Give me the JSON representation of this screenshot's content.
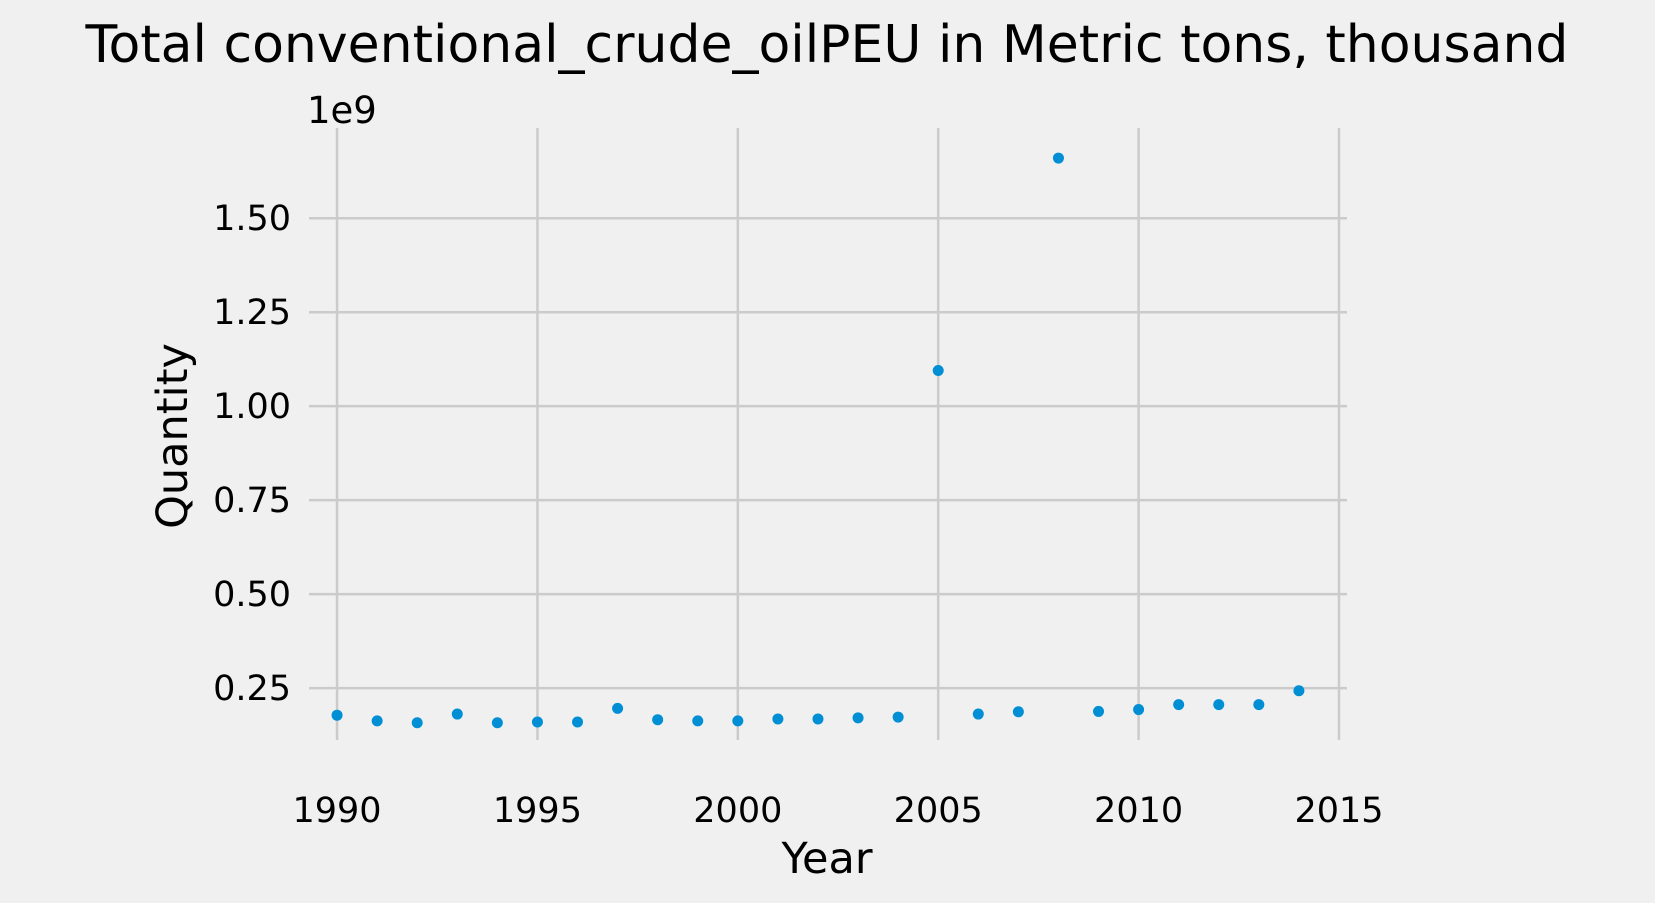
{
  "chart_data": {
    "type": "scatter",
    "title": "Total conventional_crude_oilPEU in Metric tons,  thousand",
    "xlabel": "Year",
    "ylabel": "Quantity",
    "y_offset_label": "1e9",
    "x_ticks": [
      1990,
      1995,
      2000,
      2005,
      2010,
      2015
    ],
    "y_ticks": [
      "0.25",
      "0.50",
      "0.75",
      "1.00",
      "1.25",
      "1.50"
    ],
    "xlim": [
      1989.3,
      2015.2
    ],
    "ylim": [
      0.112,
      1.74
    ],
    "y_scale_factor": 1000000000,
    "grid": true,
    "marker_color": "#008fd5",
    "background_color": "#f0f0f0",
    "grid_color": "#cbcbcb",
    "x": [
      1990,
      1991,
      1992,
      1993,
      1994,
      1995,
      1996,
      1997,
      1998,
      1999,
      2000,
      2001,
      2002,
      2003,
      2004,
      2005,
      2006,
      2007,
      2008,
      2009,
      2010,
      2011,
      2012,
      2013,
      2014
    ],
    "y": [
      0.178,
      0.163,
      0.158,
      0.181,
      0.158,
      0.16,
      0.16,
      0.196,
      0.166,
      0.163,
      0.163,
      0.168,
      0.168,
      0.171,
      0.173,
      1.095,
      0.181,
      0.187,
      1.66,
      0.188,
      0.193,
      0.206,
      0.206,
      0.206,
      0.243
    ]
  }
}
